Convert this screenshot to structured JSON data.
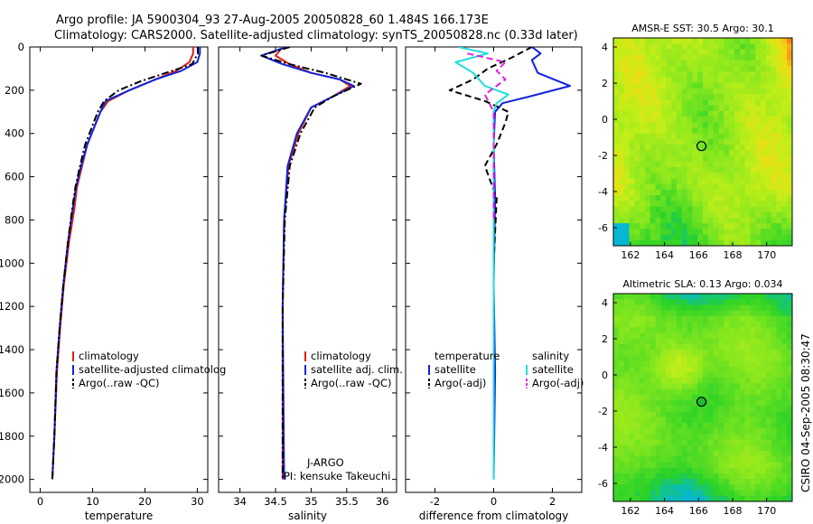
{
  "title": {
    "line1": "Argo profile: JA 5900304_93 27-Aug-2005 20050828_60 1.484S 166.173E",
    "line2": "Climatology: CARS2000. Satellite-adjusted climatology: synTS_20050828.nc (0.33d later)"
  },
  "credit": "CSIRO 04-Sep-2005 08:30:47",
  "chart_data": [
    {
      "id": "temperature",
      "type": "line",
      "xlabel": "temperature",
      "ylabel": "",
      "xlim": [
        -2,
        32
      ],
      "ylim": [
        2060,
        0
      ],
      "xticks": [
        "0",
        "10",
        "20",
        "30"
      ],
      "xtick_values": [
        0,
        10,
        20,
        30
      ],
      "yticks": [
        "0",
        "200",
        "400",
        "600",
        "800",
        "1000",
        "1200",
        "1400",
        "1600",
        "1800",
        "2000"
      ],
      "ytick_values": [
        0,
        200,
        400,
        600,
        800,
        1000,
        1200,
        1400,
        1600,
        1800,
        2000
      ],
      "legend": [
        "climatology",
        "satellite-adjusted climatolog",
        "Argo(..raw -QC)"
      ],
      "series": [
        {
          "name": "climatology",
          "color": "#dd2211",
          "dash": "solid",
          "x": [
            29.2,
            29.2,
            28.5,
            26,
            22,
            17,
            13,
            11.5,
            9,
            8,
            7,
            6.5,
            5.5,
            4.5,
            3.8,
            3.2,
            2.7,
            2.3
          ],
          "y": [
            0,
            30,
            70,
            110,
            150,
            200,
            250,
            300,
            450,
            550,
            650,
            750,
            900,
            1100,
            1300,
            1500,
            1800,
            2000
          ]
        },
        {
          "name": "satellite-adjusted climatology",
          "color": "#1122dd",
          "dash": "solid",
          "x": [
            30.5,
            30.5,
            30,
            27,
            22,
            17,
            12.5,
            11.5,
            9,
            7.8,
            6.8,
            6.2,
            5.3,
            4.4,
            3.7,
            3.1,
            2.7,
            2.3
          ],
          "y": [
            0,
            30,
            70,
            110,
            150,
            200,
            250,
            300,
            450,
            550,
            650,
            750,
            900,
            1100,
            1300,
            1500,
            1800,
            2000
          ]
        },
        {
          "name": "Argo(..raw -QC)",
          "color": "#000000",
          "dash": "dashdot",
          "x": [
            30.1,
            30.1,
            29,
            24,
            19,
            15,
            12.2,
            11,
            8.6,
            7.6,
            6.7,
            6.1,
            5.3,
            4.4,
            3.7,
            3.1,
            2.7,
            2.3
          ],
          "y": [
            0,
            30,
            80,
            120,
            160,
            200,
            250,
            300,
            450,
            550,
            650,
            750,
            900,
            1100,
            1300,
            1500,
            1800,
            2000
          ]
        }
      ]
    },
    {
      "id": "salinity",
      "type": "line",
      "xlabel": "salinity",
      "ylabel": "",
      "xlim": [
        33.7,
        36.2
      ],
      "ylim": [
        2060,
        0
      ],
      "xticks": [
        "34",
        "34.5",
        "35",
        "35.5",
        "36"
      ],
      "xtick_values": [
        34,
        34.5,
        35,
        35.5,
        36
      ],
      "yticks": [],
      "ytick_values": [],
      "legend": [
        "climatology",
        "satellite adj. clim.",
        "Argo(..raw -QC)"
      ],
      "annotation": [
        "J-ARGO",
        "PI: kensuke Takeuchi"
      ],
      "series": [
        {
          "name": "climatology",
          "color": "#dd2211",
          "dash": "solid",
          "x": [
            34.6,
            34.5,
            34.7,
            35.0,
            35.4,
            35.55,
            35.3,
            35.0,
            34.82,
            34.68,
            34.62,
            34.6,
            34.6
          ],
          "y": [
            0,
            40,
            80,
            120,
            150,
            180,
            230,
            280,
            400,
            550,
            800,
            1200,
            2000
          ]
        },
        {
          "name": "satellite adj. clim.",
          "color": "#1122dd",
          "dash": "solid",
          "x": [
            34.65,
            34.3,
            34.6,
            35.0,
            35.4,
            35.6,
            35.3,
            35.0,
            34.8,
            34.67,
            34.62,
            34.6,
            34.62
          ],
          "y": [
            0,
            40,
            80,
            120,
            150,
            180,
            230,
            280,
            400,
            550,
            800,
            1200,
            2000
          ]
        },
        {
          "name": "Argo(..raw -QC)",
          "color": "#000000",
          "dash": "dashdot",
          "x": [
            34.7,
            34.3,
            34.7,
            35.2,
            35.5,
            35.7,
            35.3,
            35.05,
            34.85,
            34.7,
            34.63,
            34.6,
            34.6
          ],
          "y": [
            0,
            40,
            80,
            120,
            150,
            170,
            230,
            280,
            400,
            550,
            800,
            1200,
            2000
          ]
        }
      ]
    },
    {
      "id": "difference",
      "type": "line",
      "xlabel": "difference from climatology",
      "ylabel": "",
      "xlim": [
        -3,
        3
      ],
      "ylim": [
        2060,
        0
      ],
      "xticks": [
        "-2",
        "0",
        "2"
      ],
      "xtick_values": [
        -2,
        0,
        2
      ],
      "yticks": [],
      "ytick_values": [],
      "legend_titles": [
        "temperature",
        "salinity"
      ],
      "legend": [
        "satellite",
        "Argo(-adj)",
        "satellite",
        "Argo(-adj)"
      ],
      "series": [
        {
          "name": "temperature satellite",
          "color": "#1122dd",
          "dash": "solid",
          "x": [
            1.3,
            1.6,
            1.3,
            1.5,
            2.6,
            1.2,
            0.3,
            0.05,
            0.0,
            0.05,
            0.0,
            0.05,
            0.0
          ],
          "y": [
            0,
            30,
            60,
            120,
            180,
            230,
            260,
            300,
            450,
            700,
            1100,
            1500,
            2000
          ]
        },
        {
          "name": "temperature Argo(-adj)",
          "color": "#000000",
          "dash": "dashed",
          "x": [
            1.3,
            0.6,
            -0.2,
            -0.7,
            -1.5,
            -0.3,
            0.5,
            0.4,
            0.1,
            -0.3,
            0.1,
            0.0,
            0.0
          ],
          "y": [
            0,
            50,
            100,
            150,
            200,
            250,
            300,
            350,
            450,
            550,
            700,
            1000,
            1300
          ]
        },
        {
          "name": "salinity satellite",
          "color": "#22dddd",
          "dash": "solid",
          "x": [
            -1.2,
            -0.2,
            -1.3,
            -0.7,
            -0.3,
            0.5,
            0.1,
            0.0,
            0.0,
            0.0,
            0.0,
            0.0
          ],
          "y": [
            0,
            30,
            70,
            120,
            180,
            220,
            260,
            300,
            500,
            1000,
            1500,
            2000
          ]
        },
        {
          "name": "salinity Argo(-adj)",
          "color": "#dd22dd",
          "dash": "dashed",
          "x": [
            -0.9,
            0.4,
            0.1,
            0.4,
            -0.3,
            0.0,
            0.0,
            0.0
          ],
          "y": [
            30,
            70,
            110,
            150,
            220,
            300,
            500,
            800
          ]
        }
      ]
    },
    {
      "id": "sst_map",
      "type": "heatmap",
      "title": "AMSR-E SST: 30.5 Argo: 30.1",
      "xlim": [
        161,
        171.5
      ],
      "ylim": [
        -7,
        4.5
      ],
      "xticks": [
        "162",
        "164",
        "166",
        "168",
        "170"
      ],
      "xtick_values": [
        162,
        164,
        166,
        168,
        170
      ],
      "yticks": [
        "4",
        "2",
        "0",
        "-2",
        "-4",
        "-6"
      ],
      "ytick_values": [
        4,
        2,
        0,
        -2,
        -4,
        -6
      ],
      "marker": {
        "lon": 166.173,
        "lat": -1.484,
        "filled": false
      }
    },
    {
      "id": "sla_map",
      "type": "heatmap",
      "title": "Altimetric SLA: 0.13 Argo: 0.034",
      "xlim": [
        161,
        171.5
      ],
      "ylim": [
        -7,
        4.5
      ],
      "xticks": [
        "162",
        "164",
        "166",
        "168",
        "170"
      ],
      "xtick_values": [
        162,
        164,
        166,
        168,
        170
      ],
      "yticks": [
        "4",
        "2",
        "0",
        "-2",
        "-4",
        "-6"
      ],
      "ytick_values": [
        4,
        2,
        0,
        -2,
        -4,
        -6
      ],
      "marker": {
        "lon": 166.173,
        "lat": -1.484,
        "filled": true
      }
    }
  ]
}
